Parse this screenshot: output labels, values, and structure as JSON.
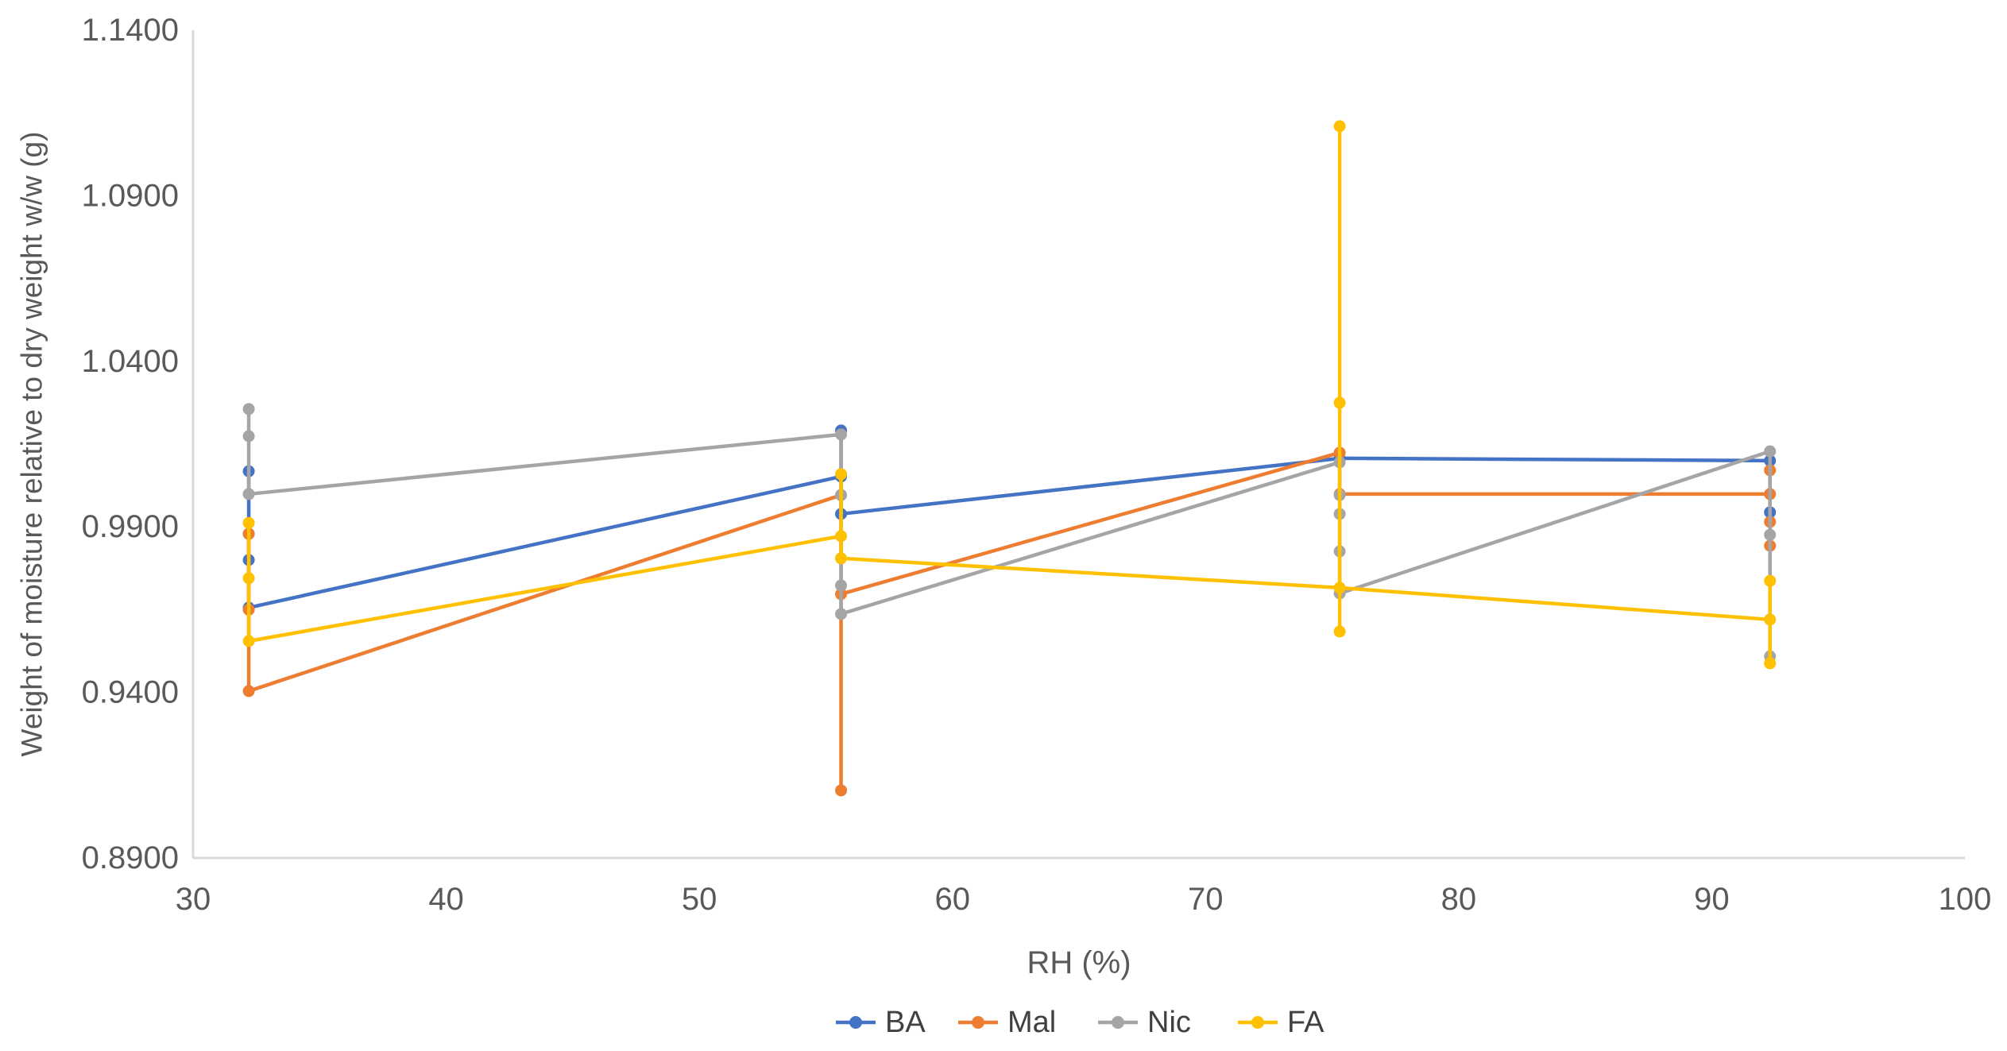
{
  "page": {
    "background": "#ffffff"
  },
  "chart_data": {
    "type": "line",
    "title": "",
    "xlabel": "RH (%)",
    "ylabel": "Weight of moisture relative to dry weight w/w (g)",
    "xlim": [
      30,
      100
    ],
    "ylim": [
      0.89,
      1.14
    ],
    "grid": false,
    "legend_position": "bottom",
    "x_ticks": [
      30,
      40,
      50,
      60,
      70,
      80,
      90,
      100
    ],
    "y_ticks": [
      {
        "value": 1.14,
        "label": "1.1400"
      },
      {
        "value": 1.09,
        "label": "1.0900"
      },
      {
        "value": 1.04,
        "label": "1.0400"
      },
      {
        "value": 0.99,
        "label": "0.9900"
      },
      {
        "value": 0.94,
        "label": "0.9400"
      },
      {
        "value": 0.89,
        "label": "0.8900"
      }
    ],
    "rh_levels": [
      32.2,
      55.6,
      75.3,
      92.3
    ],
    "colors": {
      "BA": "#4472C4",
      "Mal": "#ED7D31",
      "Nic": "#A5A5A5",
      "FA": "#FFC000",
      "axis_line": "#D9D9D9",
      "tick_text": "#595959",
      "legend_text": "#404040"
    },
    "series": [
      {
        "name": "BA",
        "color": "#4472C4",
        "clusters": [
          {
            "rh": 32.2,
            "points": [
              1.0068,
              0.9879,
              0.98,
              0.9656
            ],
            "exit": 0.9656
          },
          {
            "rh": 55.6,
            "points": [
              1.0191,
              1.0052,
              0.9939
            ],
            "enter": 1.0052,
            "exit": 0.9939
          },
          {
            "rh": 75.3,
            "points": [
              1.0107
            ],
            "enter": 1.0107,
            "exit": 1.0107
          },
          {
            "rh": 92.3,
            "points": [
              1.01,
              0.9944
            ],
            "enter": 1.01
          }
        ]
      },
      {
        "name": "Mal",
        "color": "#ED7D31",
        "clusters": [
          {
            "rh": 32.2,
            "points": [
              0.9879,
              0.965,
              0.9404
            ],
            "exit": 0.9404
          },
          {
            "rh": 55.6,
            "points": [
              0.9996,
              0.9697,
              0.9104
            ],
            "enter": 0.9996,
            "exit": 0.9697
          },
          {
            "rh": 75.3,
            "points": [
              1.0124,
              0.9999
            ],
            "enter": 1.0124,
            "exit": 0.9999
          },
          {
            "rh": 92.3,
            "points": [
              1.0071,
              0.9999,
              0.9915,
              0.9843
            ],
            "enter": 0.9999
          }
        ]
      },
      {
        "name": "Nic",
        "color": "#A5A5A5",
        "clusters": [
          {
            "rh": 32.2,
            "points": [
              1.0256,
              1.0174,
              0.9999
            ],
            "exit": 0.9999
          },
          {
            "rh": 55.6,
            "points": [
              1.0179,
              0.9996,
              0.9723,
              0.9637
            ],
            "enter": 1.0179,
            "exit": 0.9637
          },
          {
            "rh": 75.3,
            "points": [
              1.0095,
              0.9996,
              0.9939,
              0.9826,
              0.9699
            ],
            "enter": 1.0095,
            "exit": 0.9699
          },
          {
            "rh": 92.3,
            "points": [
              1.0128,
              0.9876,
              0.9509
            ],
            "enter": 1.0128
          }
        ]
      },
      {
        "name": "FA",
        "color": "#FFC000",
        "clusters": [
          {
            "rh": 32.2,
            "points": [
              0.9912,
              0.9745,
              0.9555
            ],
            "exit": 0.9555
          },
          {
            "rh": 55.6,
            "points": [
              1.0059,
              0.9872,
              0.9805
            ],
            "enter": 0.9872,
            "exit": 0.9805
          },
          {
            "rh": 75.3,
            "points": [
              1.111,
              1.0275,
              0.9716,
              0.9584
            ],
            "enter": 0.9716,
            "exit": 0.9716
          },
          {
            "rh": 92.3,
            "points": [
              0.9737,
              0.962,
              0.9488
            ],
            "enter": 0.962
          }
        ]
      }
    ],
    "legend": [
      "BA",
      "Mal",
      "Nic",
      "FA"
    ]
  }
}
